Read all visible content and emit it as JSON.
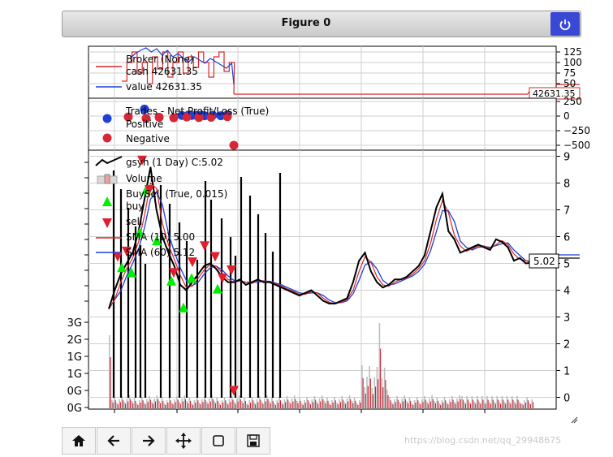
{
  "window": {
    "title": "Figure 0"
  },
  "toolbar": {
    "items": [
      "home-icon",
      "back-arrow-icon",
      "forward-arrow-icon",
      "pan-move-icon",
      "zoom-rect-icon",
      "save-disk-icon"
    ]
  },
  "watermark": "https://blog.csdn.net/qq_29948675",
  "colors": {
    "cash": "#d62728",
    "value": "#1f3fd6",
    "positive": "#1f3fd6",
    "negative": "#d62738",
    "price": "#000000",
    "buy": "#00ee00",
    "sell": "#e02030",
    "sma10": "#d62728",
    "sma60": "#1f3fd6",
    "volume": "#cc2233"
  },
  "chart_data": [
    {
      "type": "line",
      "panel": "broker",
      "legend": [
        "Broker (None)",
        "cash 42631.35",
        "value 42631.35"
      ],
      "y_ticks": [
        "125",
        "100",
        "75",
        "50"
      ],
      "last_value_label": "42631.35",
      "grid": true
    },
    {
      "type": "scatter",
      "panel": "trades",
      "legend": [
        "Trades - Net Profit/Loss (True)",
        "Positive",
        "Negative"
      ],
      "y_ticks": [
        "250",
        "0",
        "−250",
        "−500"
      ],
      "ylim": [
        -600,
        300
      ],
      "positive": [
        120,
        10,
        15,
        10,
        5,
        15,
        5,
        20,
        15,
        10
      ],
      "negative": [
        -15,
        -40,
        -20,
        -30,
        -15,
        -25,
        -20,
        -10,
        -500
      ],
      "grid": true
    },
    {
      "type": "line",
      "panel": "price",
      "legend": [
        "gsyh (1 Day) C:5.02",
        "Volume",
        "BuySell (True, 0.015)",
        "buy",
        "sell",
        "SMA (10) 5.00",
        "SMA (60) 5.12"
      ],
      "y_ticks_right": [
        "9",
        "8",
        "7",
        "6",
        "5",
        "4",
        "3",
        "2",
        "1",
        "0"
      ],
      "y_ticks_left": [
        "3G",
        "2G",
        "1G",
        "1G",
        "0G",
        "0G"
      ],
      "ylim": [
        -0.5,
        9.2
      ],
      "last_value_label": "5.02",
      "close": [
        3.3,
        4.0,
        4.6,
        5.0,
        5.4,
        6.2,
        7.4,
        8.6,
        7.0,
        6.0,
        5.4,
        4.9,
        4.2,
        4.0,
        4.3,
        4.6,
        4.9,
        5.0,
        4.8,
        4.5,
        4.3,
        4.3,
        4.4,
        4.2,
        4.3,
        4.4,
        4.3,
        4.3,
        4.2,
        4.1,
        4.0,
        3.9,
        3.8,
        3.9,
        4.0,
        3.8,
        3.6,
        3.5,
        3.5,
        3.6,
        3.7,
        4.3,
        5.1,
        5.4,
        4.7,
        4.3,
        4.1,
        4.2,
        4.4,
        4.4,
        4.5,
        4.7,
        4.9,
        5.3,
        6.2,
        7.1,
        7.6,
        6.2,
        5.9,
        5.4,
        5.5,
        5.6,
        5.7,
        5.6,
        5.5,
        5.9,
        5.8,
        5.6,
        5.1,
        5.2,
        5.0,
        5.02
      ],
      "buy_signals": [
        5.1,
        4.9,
        6.4,
        8.0,
        6.1,
        4.6,
        3.6,
        4.7,
        4.3
      ],
      "sell_signals": [
        5.0,
        5.2,
        8.6,
        7.5,
        4.4,
        4.8,
        5.4,
        5.0,
        4.2,
        4.5,
        0.0
      ],
      "grid": true
    }
  ]
}
